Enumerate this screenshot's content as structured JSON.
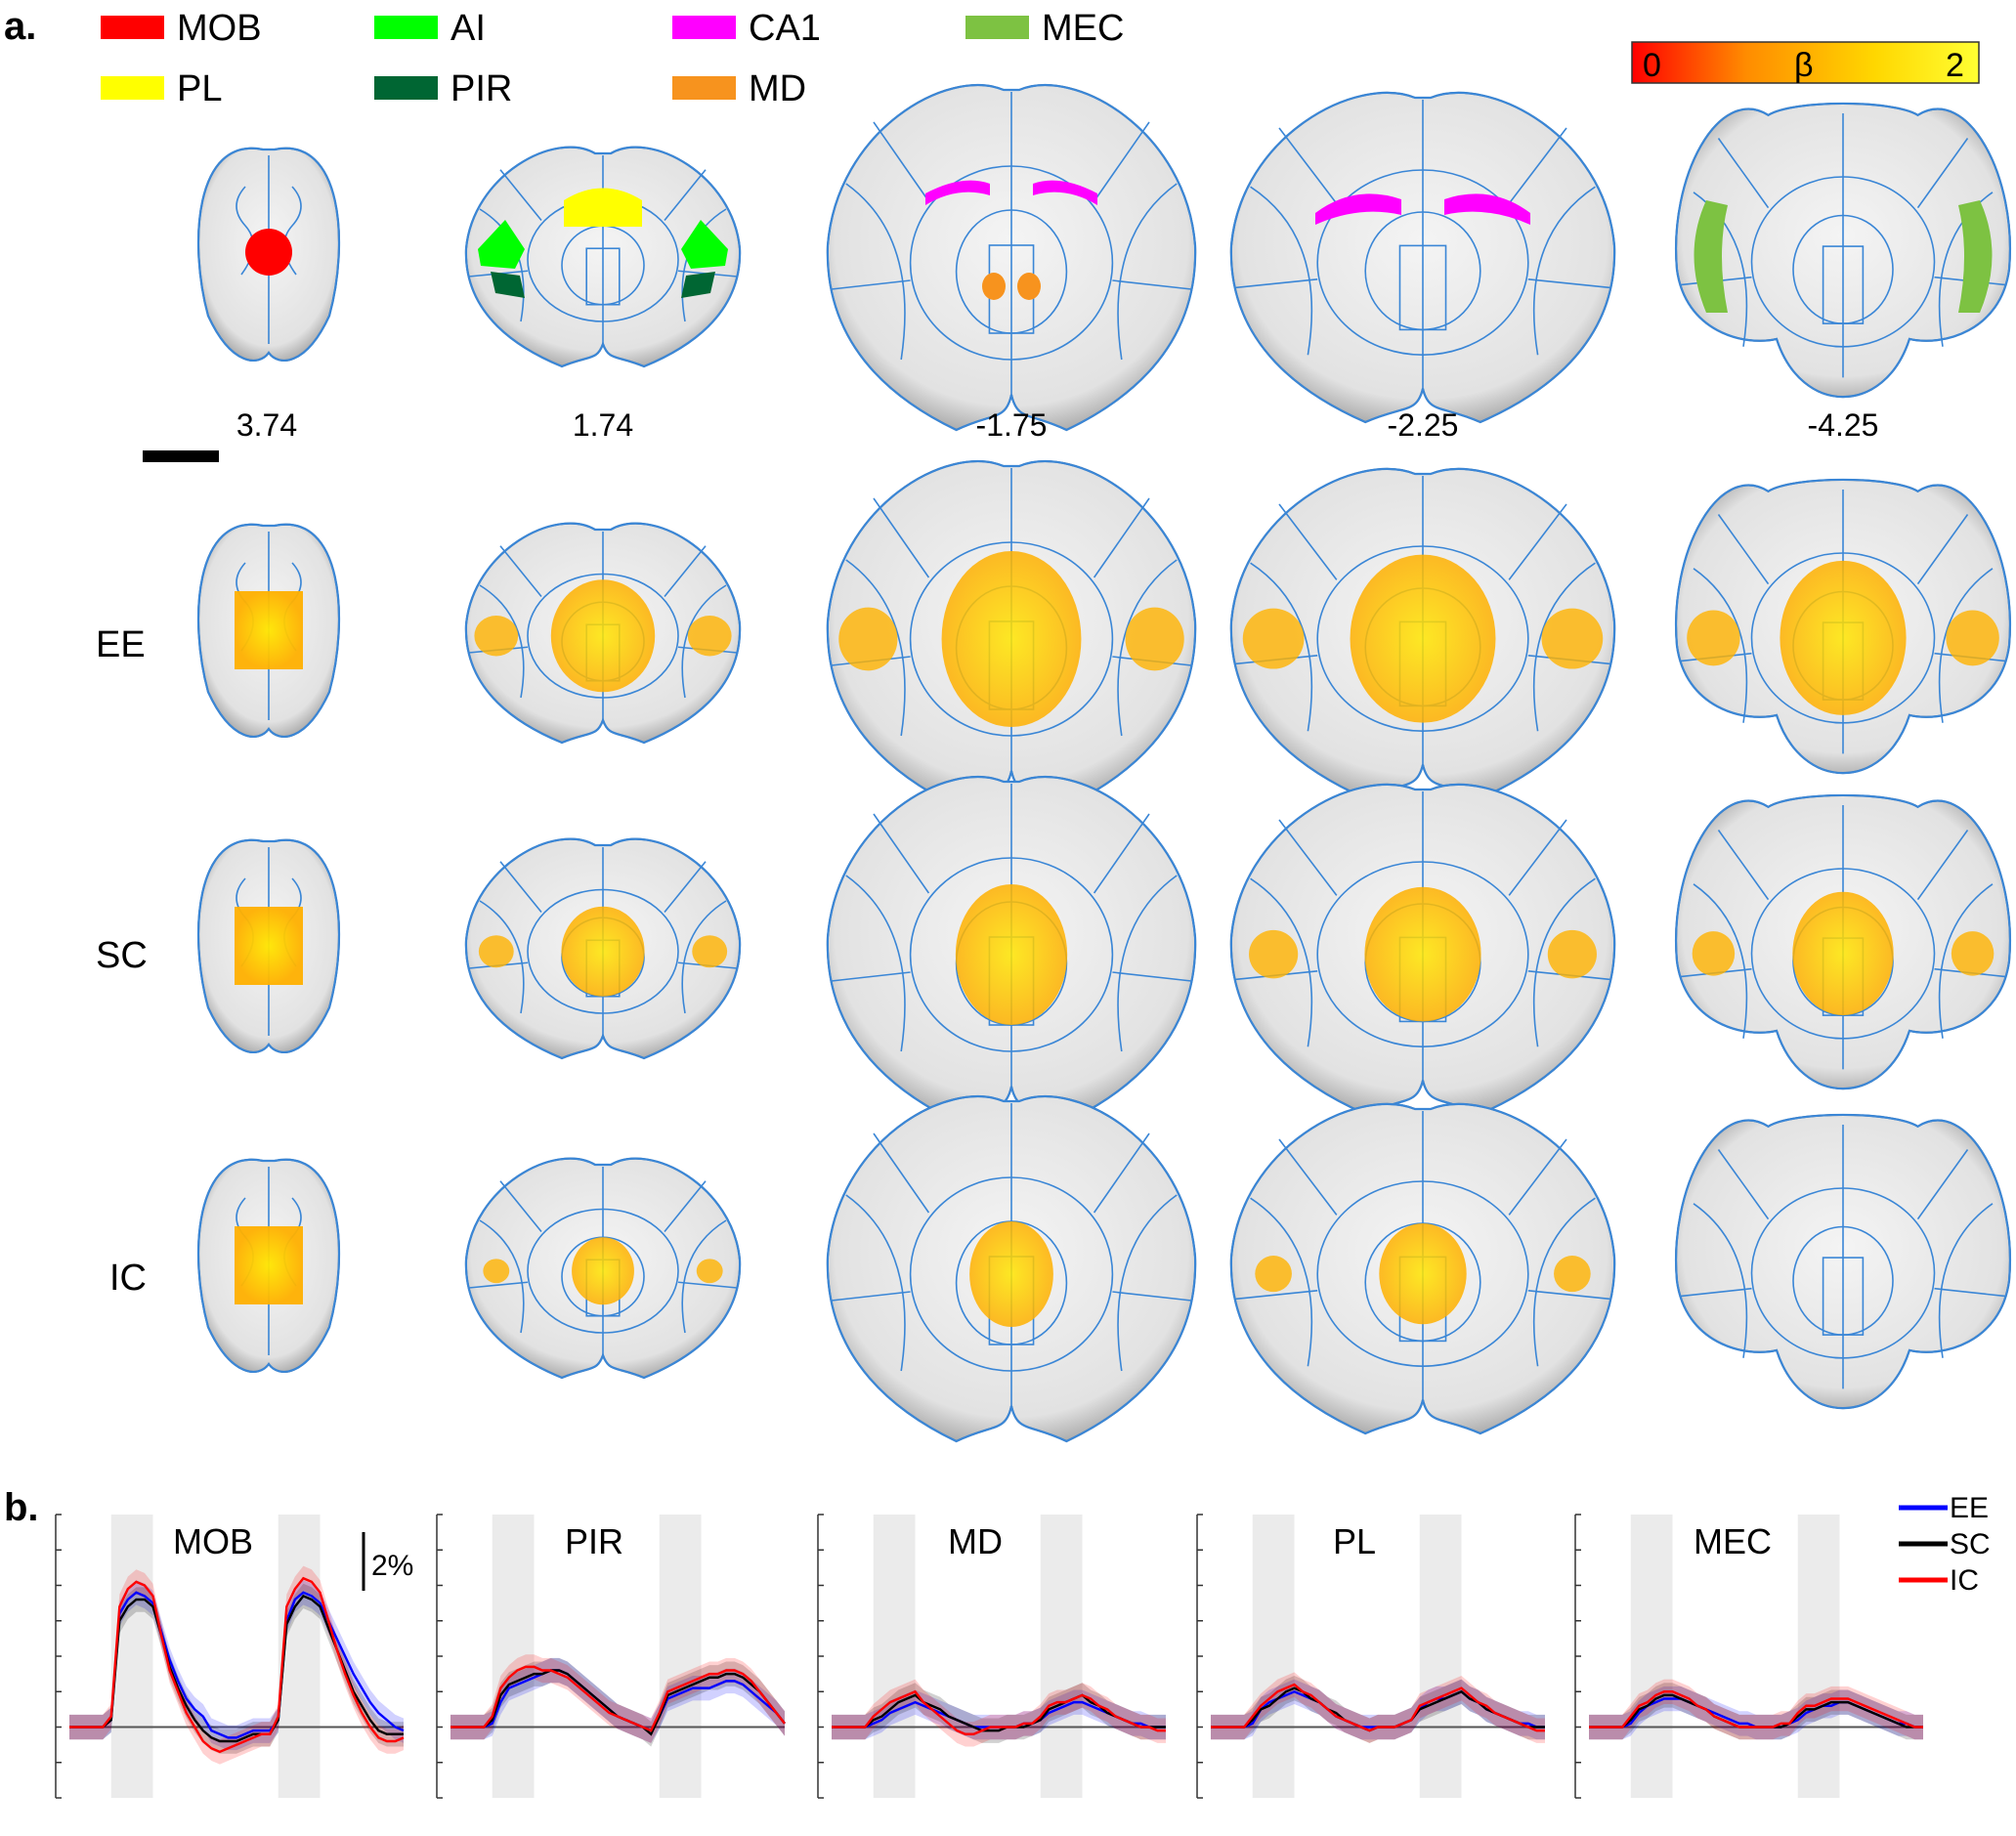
{
  "panel_a": {
    "label": "a.",
    "legend": [
      {
        "name": "MOB",
        "color": "#ff0000"
      },
      {
        "name": "AI",
        "color": "#00ff00"
      },
      {
        "name": "CA1",
        "color": "#ff00ff"
      },
      {
        "name": "MEC",
        "color": "#7dc242"
      },
      {
        "name": "PL",
        "color": "#ffff00"
      },
      {
        "name": "PIR",
        "color": "#006633"
      },
      {
        "name": "MD",
        "color": "#f7931e"
      }
    ],
    "colorbar": {
      "min_label": "0",
      "mid_label": "β",
      "max_label": "2",
      "colors": [
        "#ff0000",
        "#ff8c00",
        "#ffd700",
        "#ffff33"
      ]
    },
    "section_coordinates": [
      "3.74",
      "1.74",
      "-1.75",
      "-2.25",
      "-4.25"
    ],
    "row_labels": [
      "EE",
      "SC",
      "IC"
    ],
    "atlas_outline_color": "#3a86d6",
    "activation_color": "#ffb300"
  },
  "panel_b": {
    "label": "b.",
    "scale_bar_label": "2%",
    "series": [
      {
        "name": "EE",
        "color": "#0000ff"
      },
      {
        "name": "SC",
        "color": "#000000"
      },
      {
        "name": "IC",
        "color": "#ff0000"
      }
    ]
  },
  "chart_data": {
    "type": "line",
    "title": "",
    "xlabel": "",
    "ylabel": "",
    "x": [
      0,
      1,
      2,
      3,
      4,
      5,
      6,
      7,
      8,
      9,
      10,
      11,
      12,
      13,
      14,
      15,
      16,
      17,
      18,
      19,
      20,
      21,
      22,
      23,
      24,
      25,
      26,
      27,
      28,
      29,
      30,
      31,
      32,
      33,
      34,
      35,
      36,
      37,
      38,
      39,
      40
    ],
    "stimulus_blocks": [
      [
        5,
        10
      ],
      [
        25,
        30
      ]
    ],
    "ylim": [
      -2,
      6
    ],
    "scale_bar": "2%",
    "subplots": [
      {
        "title": "MOB",
        "series": [
          {
            "name": "EE",
            "values": [
              0,
              0,
              0,
              0,
              0,
              0.2,
              3.2,
              3.6,
              3.8,
              3.7,
              3.5,
              2.7,
              1.9,
              1.3,
              0.8,
              0.5,
              0.3,
              -0.1,
              -0.2,
              -0.3,
              -0.3,
              -0.2,
              -0.1,
              -0.1,
              -0.1,
              0.2,
              3.0,
              3.6,
              3.8,
              3.7,
              3.5,
              3.0,
              2.5,
              2.0,
              1.5,
              1.1,
              0.7,
              0.4,
              0.2,
              0.0,
              -0.1
            ]
          },
          {
            "name": "SC",
            "values": [
              0,
              0,
              0,
              0,
              0,
              0.2,
              3.0,
              3.4,
              3.6,
              3.6,
              3.4,
              2.6,
              1.7,
              1.1,
              0.6,
              0.2,
              -0.1,
              -0.3,
              -0.4,
              -0.4,
              -0.4,
              -0.3,
              -0.2,
              -0.2,
              -0.2,
              0.2,
              2.9,
              3.4,
              3.7,
              3.6,
              3.4,
              2.8,
              2.2,
              1.6,
              1.0,
              0.6,
              0.2,
              -0.1,
              -0.2,
              -0.2,
              -0.2
            ]
          },
          {
            "name": "IC",
            "values": [
              0,
              0,
              0,
              0,
              0,
              0.3,
              3.4,
              3.9,
              4.1,
              4.0,
              3.7,
              2.6,
              1.6,
              1.0,
              0.4,
              0.0,
              -0.4,
              -0.6,
              -0.7,
              -0.6,
              -0.5,
              -0.4,
              -0.3,
              -0.2,
              -0.2,
              0.3,
              3.4,
              3.9,
              4.2,
              4.1,
              3.8,
              3.0,
              2.2,
              1.5,
              0.9,
              0.4,
              0.0,
              -0.3,
              -0.4,
              -0.4,
              -0.3
            ]
          }
        ]
      },
      {
        "title": "PIR",
        "series": [
          {
            "name": "EE",
            "values": [
              0,
              0,
              0,
              0,
              0,
              0.1,
              0.7,
              1.1,
              1.2,
              1.3,
              1.4,
              1.5,
              1.6,
              1.6,
              1.5,
              1.3,
              1.1,
              0.9,
              0.7,
              0.5,
              0.3,
              0.2,
              0.1,
              0.0,
              -0.1,
              0.3,
              0.8,
              0.9,
              1.0,
              1.1,
              1.1,
              1.1,
              1.2,
              1.3,
              1.3,
              1.2,
              1.0,
              0.8,
              0.6,
              0.4,
              0.1
            ]
          },
          {
            "name": "SC",
            "values": [
              0,
              0,
              0,
              0,
              0,
              0.2,
              0.9,
              1.2,
              1.3,
              1.4,
              1.5,
              1.5,
              1.6,
              1.6,
              1.5,
              1.3,
              1.1,
              0.9,
              0.7,
              0.5,
              0.3,
              0.2,
              0.1,
              0.0,
              -0.2,
              0.3,
              0.9,
              1.0,
              1.1,
              1.2,
              1.3,
              1.4,
              1.4,
              1.5,
              1.5,
              1.4,
              1.2,
              1.0,
              0.7,
              0.4,
              0.1
            ]
          },
          {
            "name": "IC",
            "values": [
              0,
              0,
              0,
              0,
              0,
              0.3,
              1.1,
              1.4,
              1.6,
              1.7,
              1.7,
              1.6,
              1.6,
              1.5,
              1.4,
              1.2,
              1.0,
              0.8,
              0.6,
              0.4,
              0.3,
              0.2,
              0.1,
              0.0,
              -0.1,
              0.4,
              1.0,
              1.1,
              1.2,
              1.3,
              1.4,
              1.5,
              1.5,
              1.6,
              1.6,
              1.5,
              1.3,
              1.0,
              0.7,
              0.4,
              0.1
            ]
          }
        ]
      },
      {
        "title": "MD",
        "series": [
          {
            "name": "EE",
            "values": [
              0,
              0,
              0,
              0,
              0,
              0.1,
              0.2,
              0.4,
              0.5,
              0.6,
              0.7,
              0.6,
              0.5,
              0.4,
              0.3,
              0.2,
              0.1,
              0.0,
              0.0,
              0.0,
              0.0,
              0.0,
              0.0,
              0.1,
              0.1,
              0.2,
              0.4,
              0.5,
              0.6,
              0.7,
              0.7,
              0.6,
              0.5,
              0.4,
              0.3,
              0.2,
              0.1,
              0.1,
              0.0,
              0.0,
              0.0
            ]
          },
          {
            "name": "SC",
            "values": [
              0,
              0,
              0,
              0,
              0,
              0.2,
              0.3,
              0.5,
              0.7,
              0.8,
              0.9,
              0.7,
              0.6,
              0.5,
              0.3,
              0.2,
              0.1,
              0.0,
              -0.1,
              -0.1,
              -0.1,
              0.0,
              0.0,
              0.0,
              0.1,
              0.2,
              0.5,
              0.6,
              0.7,
              0.8,
              0.9,
              0.7,
              0.6,
              0.4,
              0.3,
              0.2,
              0.1,
              0.0,
              0.0,
              0.0,
              0.0
            ]
          },
          {
            "name": "IC",
            "values": [
              0,
              0,
              0,
              0,
              0,
              0.3,
              0.5,
              0.7,
              0.8,
              0.9,
              1.0,
              0.7,
              0.5,
              0.3,
              0.1,
              -0.1,
              -0.2,
              -0.2,
              -0.1,
              0.0,
              0.0,
              0.0,
              0.0,
              0.1,
              0.1,
              0.3,
              0.6,
              0.7,
              0.7,
              0.8,
              0.9,
              0.8,
              0.6,
              0.5,
              0.3,
              0.2,
              0.1,
              0.0,
              0.0,
              -0.1,
              -0.1
            ]
          }
        ]
      },
      {
        "title": "PL",
        "series": [
          {
            "name": "EE",
            "values": [
              0,
              0,
              0,
              0,
              0,
              0.1,
              0.5,
              0.7,
              0.8,
              0.9,
              1.0,
              0.9,
              0.8,
              0.7,
              0.5,
              0.3,
              0.2,
              0.1,
              0.0,
              0.0,
              0.0,
              0.0,
              0.0,
              0.1,
              0.2,
              0.5,
              0.7,
              0.8,
              0.8,
              0.9,
              1.0,
              0.8,
              0.7,
              0.5,
              0.4,
              0.3,
              0.2,
              0.1,
              0.1,
              0.0,
              0.0
            ]
          },
          {
            "name": "SC",
            "values": [
              0,
              0,
              0,
              0,
              0,
              0.2,
              0.5,
              0.6,
              0.8,
              1.0,
              1.1,
              1.0,
              0.8,
              0.7,
              0.5,
              0.4,
              0.2,
              0.1,
              0.0,
              -0.1,
              0.0,
              0.0,
              0.0,
              0.1,
              0.2,
              0.5,
              0.6,
              0.7,
              0.8,
              0.9,
              1.0,
              0.8,
              0.7,
              0.5,
              0.4,
              0.3,
              0.2,
              0.1,
              0.0,
              0.0,
              0.0
            ]
          },
          {
            "name": "IC",
            "values": [
              0,
              0,
              0,
              0,
              0,
              0.3,
              0.6,
              0.8,
              1.0,
              1.1,
              1.2,
              1.0,
              0.9,
              0.7,
              0.5,
              0.3,
              0.2,
              0.1,
              0.0,
              -0.1,
              0.0,
              0.0,
              0.0,
              0.1,
              0.2,
              0.6,
              0.7,
              0.8,
              0.9,
              1.0,
              1.1,
              0.9,
              0.7,
              0.6,
              0.4,
              0.3,
              0.2,
              0.1,
              0.0,
              -0.1,
              -0.1
            ]
          }
        ]
      },
      {
        "title": "MEC",
        "series": [
          {
            "name": "EE",
            "values": [
              0,
              0,
              0,
              0,
              0,
              0.1,
              0.4,
              0.6,
              0.7,
              0.8,
              0.8,
              0.8,
              0.7,
              0.6,
              0.5,
              0.4,
              0.3,
              0.2,
              0.1,
              0.1,
              0.0,
              0.0,
              0.0,
              0.0,
              0.1,
              0.2,
              0.4,
              0.5,
              0.6,
              0.6,
              0.7,
              0.7,
              0.6,
              0.5,
              0.4,
              0.3,
              0.2,
              0.1,
              0.1,
              0.0,
              0.0
            ]
          },
          {
            "name": "SC",
            "values": [
              0,
              0,
              0,
              0,
              0,
              0.2,
              0.5,
              0.6,
              0.8,
              0.9,
              0.9,
              0.8,
              0.7,
              0.6,
              0.5,
              0.3,
              0.2,
              0.1,
              0.0,
              0.0,
              0.0,
              0.0,
              0.0,
              0.0,
              0.1,
              0.3,
              0.5,
              0.5,
              0.6,
              0.7,
              0.7,
              0.7,
              0.6,
              0.5,
              0.4,
              0.3,
              0.2,
              0.1,
              0.0,
              0.0,
              0.0
            ]
          },
          {
            "name": "IC",
            "values": [
              0,
              0,
              0,
              0,
              0,
              0.3,
              0.6,
              0.7,
              0.9,
              1.0,
              1.0,
              0.9,
              0.8,
              0.6,
              0.5,
              0.3,
              0.2,
              0.1,
              0.0,
              0.0,
              0.0,
              0.0,
              0.0,
              0.1,
              0.1,
              0.4,
              0.6,
              0.6,
              0.7,
              0.8,
              0.8,
              0.8,
              0.7,
              0.6,
              0.5,
              0.4,
              0.3,
              0.2,
              0.1,
              0.0,
              0.0
            ]
          }
        ]
      }
    ]
  }
}
